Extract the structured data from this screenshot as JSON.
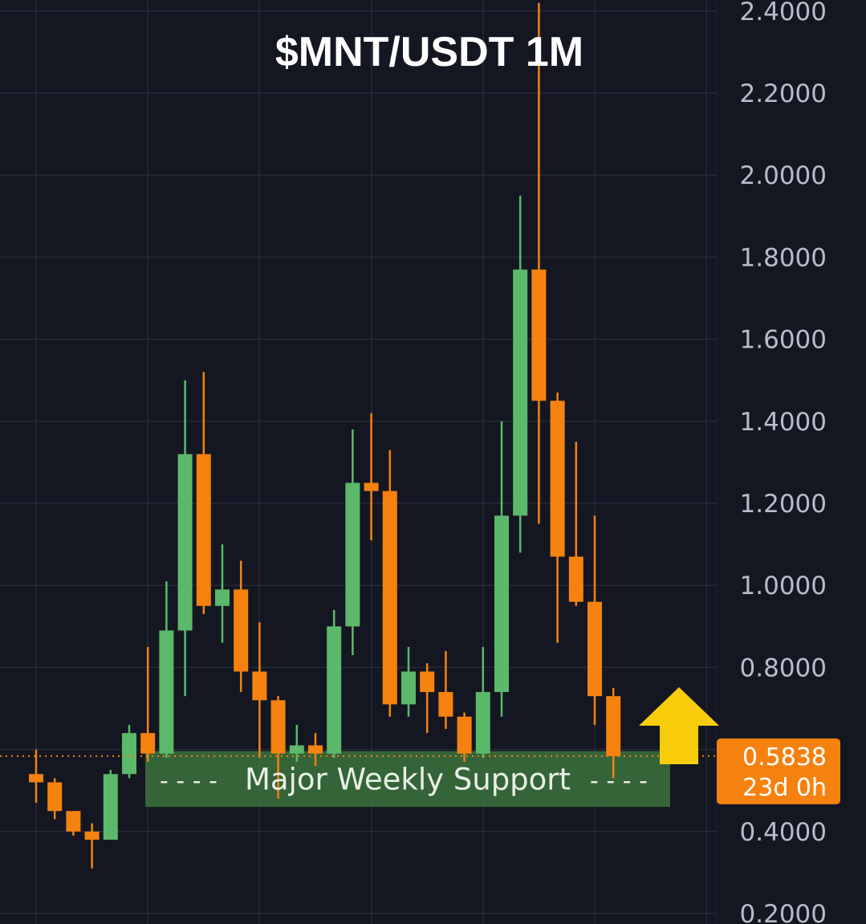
{
  "chart_data": {
    "type": "candlestick",
    "title": "$MNT/USDT 1M",
    "yticks": [
      "2.4000",
      "2.2000",
      "2.0000",
      "1.8000",
      "1.6000",
      "1.4000",
      "1.2000",
      "1.0000",
      "0.8000",
      "0.4000",
      "0.2000"
    ],
    "ytick_values": [
      2.4,
      2.2,
      2.0,
      1.8,
      1.6,
      1.4,
      1.2,
      1.0,
      0.8,
      0.4,
      0.2
    ],
    "ylim": [
      0.18,
      2.42
    ],
    "grid": true,
    "colors": {
      "up": "#5cb86a",
      "down": "#f5820f",
      "background": "#141722",
      "grid": "#262a36",
      "arrow": "#f7cd0b"
    },
    "candles": [
      {
        "o": 0.54,
        "h": 0.6,
        "l": 0.47,
        "c": 0.52
      },
      {
        "o": 0.52,
        "h": 0.53,
        "l": 0.43,
        "c": 0.45
      },
      {
        "o": 0.45,
        "h": 0.45,
        "l": 0.39,
        "c": 0.4
      },
      {
        "o": 0.4,
        "h": 0.42,
        "l": 0.31,
        "c": 0.38
      },
      {
        "o": 0.38,
        "h": 0.55,
        "l": 0.38,
        "c": 0.54
      },
      {
        "o": 0.54,
        "h": 0.66,
        "l": 0.53,
        "c": 0.64
      },
      {
        "o": 0.64,
        "h": 0.85,
        "l": 0.57,
        "c": 0.59
      },
      {
        "o": 0.59,
        "h": 1.01,
        "l": 0.58,
        "c": 0.89
      },
      {
        "o": 0.89,
        "h": 1.5,
        "l": 0.73,
        "c": 1.32
      },
      {
        "o": 1.32,
        "h": 1.52,
        "l": 0.93,
        "c": 0.95
      },
      {
        "o": 0.95,
        "h": 1.1,
        "l": 0.86,
        "c": 0.99
      },
      {
        "o": 0.99,
        "h": 1.06,
        "l": 0.74,
        "c": 0.79
      },
      {
        "o": 0.79,
        "h": 0.91,
        "l": 0.58,
        "c": 0.72
      },
      {
        "o": 0.72,
        "h": 0.73,
        "l": 0.48,
        "c": 0.59
      },
      {
        "o": 0.59,
        "h": 0.66,
        "l": 0.57,
        "c": 0.61
      },
      {
        "o": 0.61,
        "h": 0.64,
        "l": 0.56,
        "c": 0.59
      },
      {
        "o": 0.59,
        "h": 0.94,
        "l": 0.58,
        "c": 0.9
      },
      {
        "o": 0.9,
        "h": 1.38,
        "l": 0.83,
        "c": 1.25
      },
      {
        "o": 1.25,
        "h": 1.42,
        "l": 1.11,
        "c": 1.23
      },
      {
        "o": 1.23,
        "h": 1.33,
        "l": 0.68,
        "c": 0.71
      },
      {
        "o": 0.71,
        "h": 0.85,
        "l": 0.68,
        "c": 0.79
      },
      {
        "o": 0.79,
        "h": 0.81,
        "l": 0.64,
        "c": 0.74
      },
      {
        "o": 0.74,
        "h": 0.84,
        "l": 0.65,
        "c": 0.68
      },
      {
        "o": 0.68,
        "h": 0.69,
        "l": 0.57,
        "c": 0.59
      },
      {
        "o": 0.59,
        "h": 0.85,
        "l": 0.58,
        "c": 0.74
      },
      {
        "o": 0.74,
        "h": 1.4,
        "l": 0.68,
        "c": 1.17
      },
      {
        "o": 1.17,
        "h": 1.95,
        "l": 1.08,
        "c": 1.77
      },
      {
        "o": 1.77,
        "h": 2.42,
        "l": 1.15,
        "c": 1.45
      },
      {
        "o": 1.45,
        "h": 1.47,
        "l": 0.86,
        "c": 1.07
      },
      {
        "o": 1.07,
        "h": 1.35,
        "l": 0.95,
        "c": 0.96
      },
      {
        "o": 0.96,
        "h": 1.17,
        "l": 0.66,
        "c": 0.73
      },
      {
        "o": 0.73,
        "h": 0.75,
        "l": 0.53,
        "c": 0.5838
      }
    ],
    "current_price": {
      "value": 0.5838,
      "label": "0.5838",
      "countdown": "23d 0h"
    },
    "support_zone": {
      "label": "Major Weekly Support",
      "upper": 0.596,
      "lower": 0.46,
      "left_dashes": "- - - -",
      "right_dashes": "- - - -"
    }
  }
}
